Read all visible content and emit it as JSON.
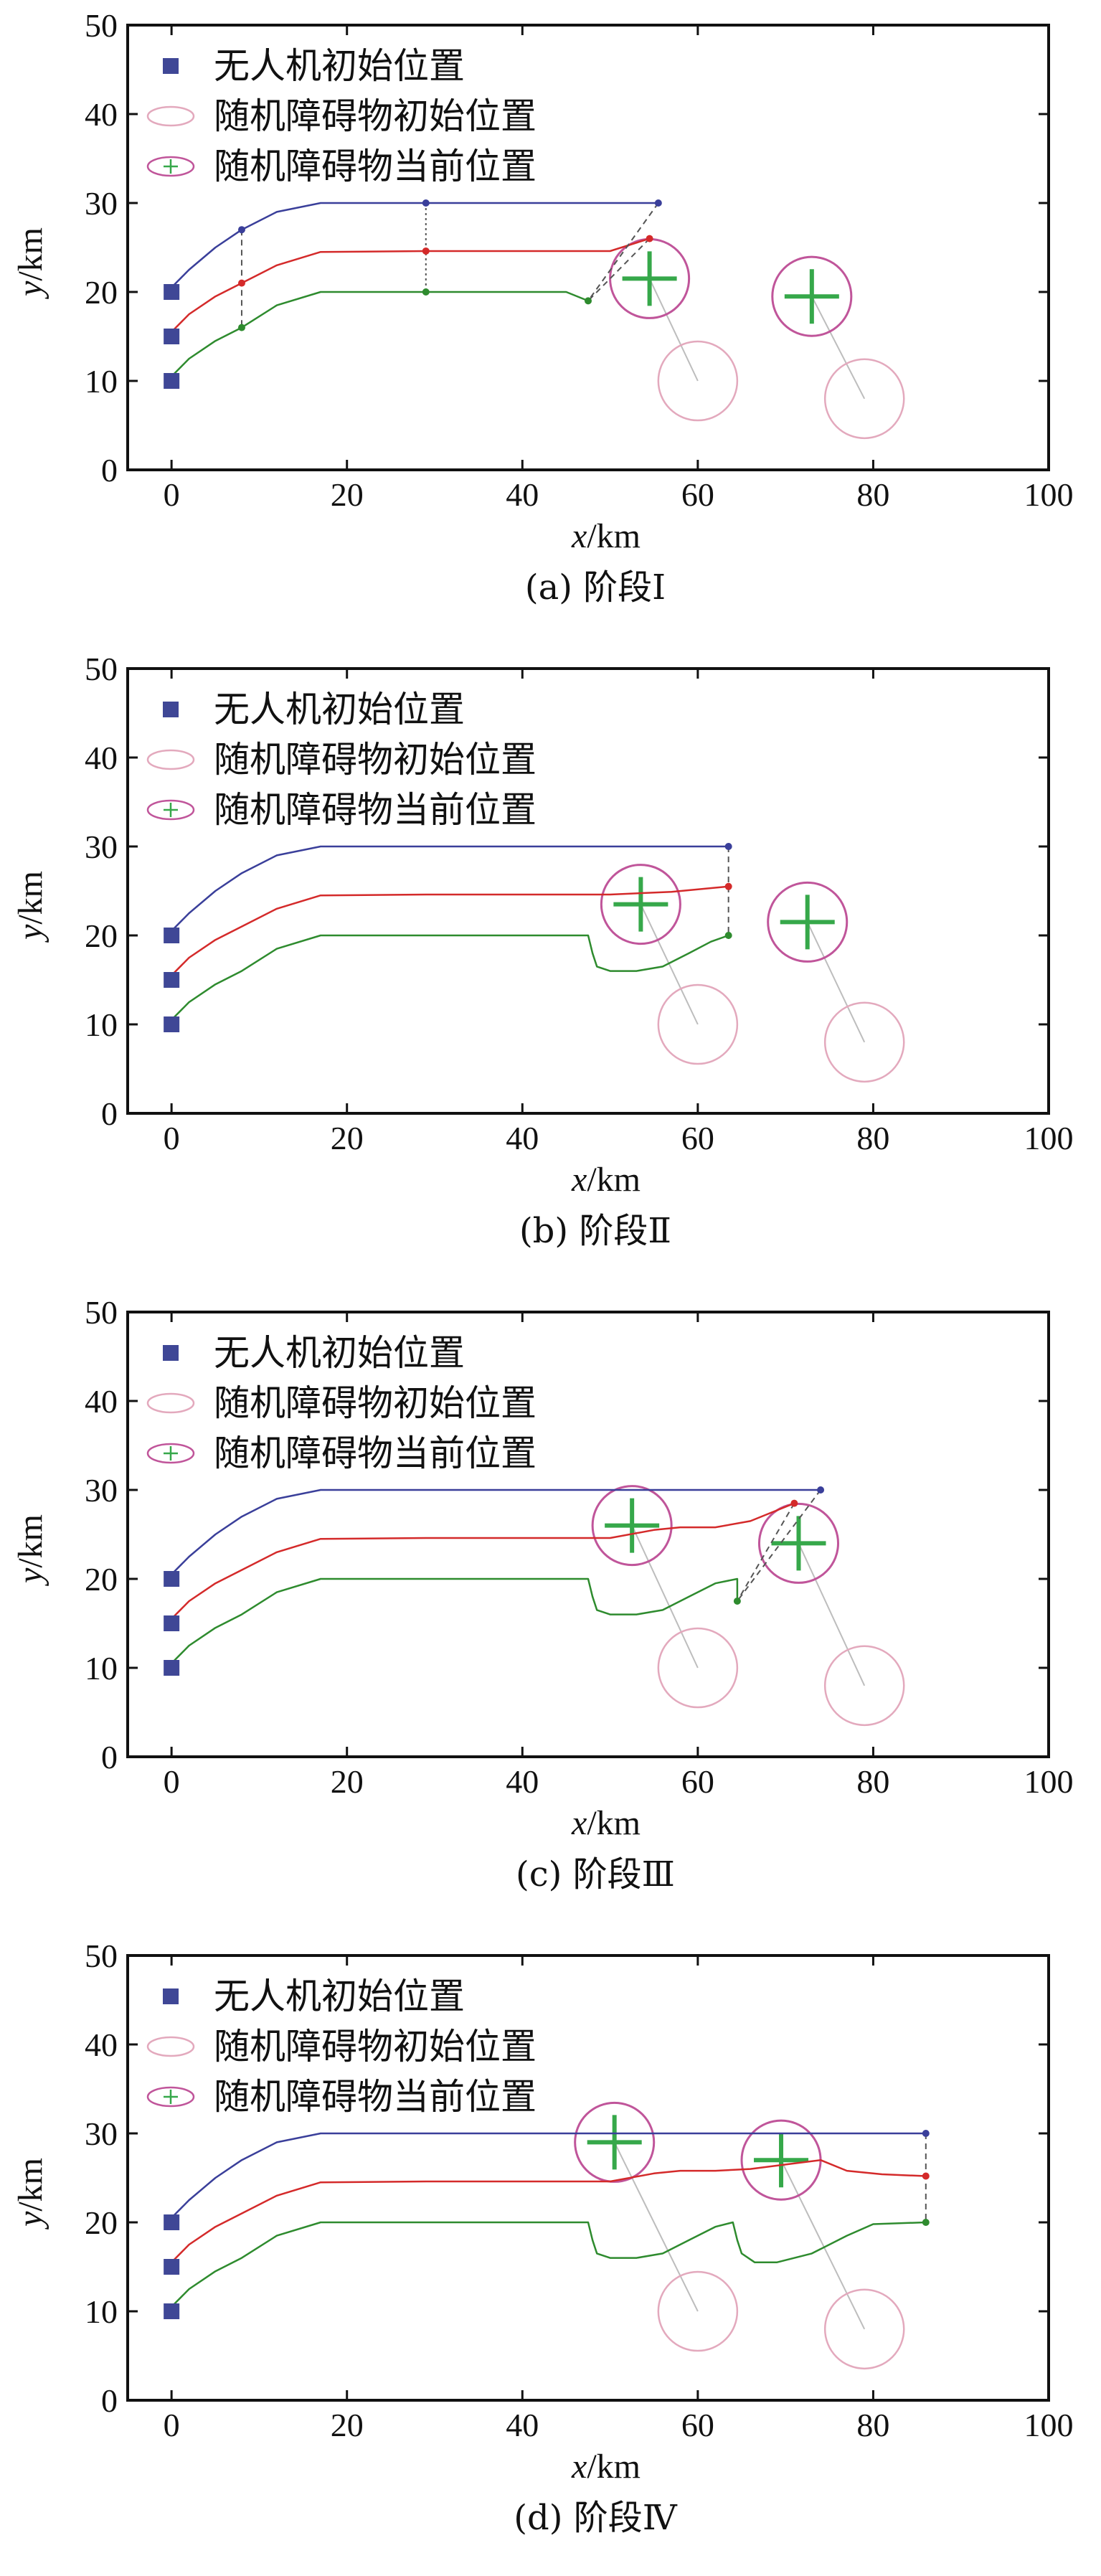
{
  "legend": {
    "uav_start": "无人机初始位置",
    "obstacle_start": "随机障碍物初始位置",
    "obstacle_current": "随机障碍物当前位置"
  },
  "colors": {
    "blue": "#3a3f9a",
    "red": "#d42a2a",
    "green": "#2e8b2e",
    "marker": "#3f4796",
    "circle": "#c0559a",
    "circle_light": "#e3a9bd",
    "cross": "#36a84a",
    "guide": "#555555",
    "obstacle_path": "#bdbdbd"
  },
  "chart_data": [
    {
      "type": "line",
      "caption": "(a) 阶段Ⅰ",
      "xlabel_var": "x",
      "xlabel_unit": "/km",
      "ylabel_var": "y",
      "ylabel_unit": "/km",
      "xlim": [
        -5,
        100
      ],
      "ylim": [
        0,
        50
      ],
      "xticks": [
        0,
        20,
        40,
        60,
        80,
        100
      ],
      "yticks": [
        0,
        10,
        20,
        30,
        40,
        50
      ],
      "uav_starts": [
        [
          0,
          20
        ],
        [
          0,
          15
        ],
        [
          0,
          10
        ]
      ],
      "series": [
        {
          "color": "blue",
          "points": [
            [
              0,
              20.5
            ],
            [
              2,
              22.5
            ],
            [
              5,
              25
            ],
            [
              8,
              27
            ],
            [
              12,
              29
            ],
            [
              17,
              30
            ],
            [
              29,
              30
            ],
            [
              45,
              30
            ],
            [
              55.5,
              30
            ]
          ]
        },
        {
          "color": "red",
          "points": [
            [
              0,
              15.5
            ],
            [
              2,
              17.5
            ],
            [
              5,
              19.5
            ],
            [
              8,
              21
            ],
            [
              12,
              23
            ],
            [
              17,
              24.5
            ],
            [
              29,
              24.6
            ],
            [
              45,
              24.6
            ],
            [
              50,
              24.6
            ],
            [
              54.5,
              26
            ]
          ]
        },
        {
          "color": "green",
          "points": [
            [
              0,
              10.5
            ],
            [
              2,
              12.5
            ],
            [
              5,
              14.5
            ],
            [
              8,
              16
            ],
            [
              12,
              18.5
            ],
            [
              17,
              20
            ],
            [
              29,
              20
            ],
            [
              45,
              20
            ],
            [
              47.5,
              19
            ]
          ]
        }
      ],
      "waypoints": [
        {
          "color": "blue",
          "points": [
            [
              8,
              27
            ],
            [
              29,
              30
            ],
            [
              55.5,
              30
            ]
          ]
        },
        {
          "color": "red",
          "points": [
            [
              8,
              21
            ],
            [
              29,
              24.6
            ],
            [
              54.5,
              26
            ]
          ]
        },
        {
          "color": "green",
          "points": [
            [
              8,
              16
            ],
            [
              29,
              20
            ],
            [
              47.5,
              19
            ]
          ]
        }
      ],
      "guides": [
        {
          "style": "dashed",
          "points": [
            [
              8,
              27
            ],
            [
              8,
              16
            ]
          ]
        },
        {
          "style": "dotted",
          "points": [
            [
              29,
              30
            ],
            [
              29,
              20
            ]
          ]
        },
        {
          "style": "dashed",
          "points": [
            [
              55.5,
              30
            ],
            [
              47.5,
              19
            ]
          ]
        },
        {
          "style": "dashed",
          "points": [
            [
              54.5,
              26
            ],
            [
              47.5,
              19
            ]
          ]
        }
      ],
      "obstacles": [
        {
          "start": [
            60,
            10
          ],
          "current": [
            54.5,
            21.5
          ]
        },
        {
          "start": [
            79,
            8
          ],
          "current": [
            73,
            19.5
          ]
        }
      ],
      "obstacle_radius": 4.5
    },
    {
      "type": "line",
      "caption": "(b) 阶段Ⅱ",
      "xlabel_var": "x",
      "xlabel_unit": "/km",
      "ylabel_var": "y",
      "ylabel_unit": "/km",
      "xlim": [
        -5,
        100
      ],
      "ylim": [
        0,
        50
      ],
      "xticks": [
        0,
        20,
        40,
        60,
        80,
        100
      ],
      "yticks": [
        0,
        10,
        20,
        30,
        40,
        50
      ],
      "uav_starts": [
        [
          0,
          20
        ],
        [
          0,
          15
        ],
        [
          0,
          10
        ]
      ],
      "series": [
        {
          "color": "blue",
          "points": [
            [
              0,
              20.5
            ],
            [
              2,
              22.5
            ],
            [
              5,
              25
            ],
            [
              8,
              27
            ],
            [
              12,
              29
            ],
            [
              17,
              30
            ],
            [
              29,
              30
            ],
            [
              45,
              30
            ],
            [
              63.5,
              30
            ]
          ]
        },
        {
          "color": "red",
          "points": [
            [
              0,
              15.5
            ],
            [
              2,
              17.5
            ],
            [
              5,
              19.5
            ],
            [
              8,
              21
            ],
            [
              12,
              23
            ],
            [
              17,
              24.5
            ],
            [
              29,
              24.6
            ],
            [
              45,
              24.6
            ],
            [
              50,
              24.6
            ],
            [
              57,
              24.9
            ],
            [
              63.5,
              25.5
            ]
          ]
        },
        {
          "color": "green",
          "points": [
            [
              0,
              10.5
            ],
            [
              2,
              12.5
            ],
            [
              5,
              14.5
            ],
            [
              8,
              16
            ],
            [
              12,
              18.5
            ],
            [
              17,
              20
            ],
            [
              29,
              20
            ],
            [
              40,
              20
            ],
            [
              47.5,
              20
            ],
            [
              48,
              18
            ],
            [
              48.5,
              16.5
            ],
            [
              50,
              16
            ],
            [
              53,
              16
            ],
            [
              56,
              16.5
            ],
            [
              59,
              18
            ],
            [
              61.5,
              19.3
            ],
            [
              63.5,
              20
            ]
          ]
        }
      ],
      "waypoints": [
        {
          "color": "blue",
          "points": [
            [
              63.5,
              30
            ]
          ]
        },
        {
          "color": "red",
          "points": [
            [
              63.5,
              25.5
            ]
          ]
        },
        {
          "color": "green",
          "points": [
            [
              63.5,
              20
            ]
          ]
        }
      ],
      "guides": [
        {
          "style": "dashed",
          "points": [
            [
              63.5,
              30
            ],
            [
              63.5,
              20
            ]
          ]
        }
      ],
      "obstacles": [
        {
          "start": [
            60,
            10
          ],
          "current": [
            53.5,
            23.5
          ]
        },
        {
          "start": [
            79,
            8
          ],
          "current": [
            72.5,
            21.5
          ]
        }
      ],
      "obstacle_radius": 4.5
    },
    {
      "type": "line",
      "caption": "(c) 阶段Ⅲ",
      "xlabel_var": "x",
      "xlabel_unit": "/km",
      "ylabel_var": "y",
      "ylabel_unit": "/km",
      "xlim": [
        -5,
        100
      ],
      "ylim": [
        0,
        50
      ],
      "xticks": [
        0,
        20,
        40,
        60,
        80,
        100
      ],
      "yticks": [
        0,
        10,
        20,
        30,
        40,
        50
      ],
      "uav_starts": [
        [
          0,
          20
        ],
        [
          0,
          15
        ],
        [
          0,
          10
        ]
      ],
      "series": [
        {
          "color": "blue",
          "points": [
            [
              0,
              20.5
            ],
            [
              2,
              22.5
            ],
            [
              5,
              25
            ],
            [
              8,
              27
            ],
            [
              12,
              29
            ],
            [
              17,
              30
            ],
            [
              29,
              30
            ],
            [
              45,
              30
            ],
            [
              60,
              30
            ],
            [
              74,
              30
            ]
          ]
        },
        {
          "color": "red",
          "points": [
            [
              0,
              15.5
            ],
            [
              2,
              17.5
            ],
            [
              5,
              19.5
            ],
            [
              8,
              21
            ],
            [
              12,
              23
            ],
            [
              17,
              24.5
            ],
            [
              29,
              24.6
            ],
            [
              45,
              24.6
            ],
            [
              50,
              24.6
            ],
            [
              55,
              25.5
            ],
            [
              58,
              25.8
            ],
            [
              62,
              25.8
            ],
            [
              66,
              26.5
            ],
            [
              71,
              28.5
            ]
          ]
        },
        {
          "color": "green",
          "points": [
            [
              0,
              10.5
            ],
            [
              2,
              12.5
            ],
            [
              5,
              14.5
            ],
            [
              8,
              16
            ],
            [
              12,
              18.5
            ],
            [
              17,
              20
            ],
            [
              29,
              20
            ],
            [
              40,
              20
            ],
            [
              47.5,
              20
            ],
            [
              48,
              18
            ],
            [
              48.5,
              16.5
            ],
            [
              50,
              16
            ],
            [
              53,
              16
            ],
            [
              56,
              16.5
            ],
            [
              59,
              18
            ],
            [
              62,
              19.5
            ],
            [
              64.5,
              20
            ],
            [
              64.5,
              17.5
            ]
          ]
        }
      ],
      "waypoints": [
        {
          "color": "blue",
          "points": [
            [
              74,
              30
            ]
          ]
        },
        {
          "color": "red",
          "points": [
            [
              71,
              28.5
            ]
          ]
        },
        {
          "color": "green",
          "points": [
            [
              64.5,
              17.5
            ]
          ]
        }
      ],
      "guides": [
        {
          "style": "dashed",
          "points": [
            [
              74,
              30
            ],
            [
              64.5,
              17.5
            ]
          ]
        },
        {
          "style": "dashed",
          "points": [
            [
              71,
              28.5
            ],
            [
              64.5,
              17.5
            ]
          ]
        }
      ],
      "obstacles": [
        {
          "start": [
            60,
            10
          ],
          "current": [
            52.5,
            26
          ]
        },
        {
          "start": [
            79,
            8
          ],
          "current": [
            71.5,
            24
          ]
        }
      ],
      "obstacle_radius": 4.5
    },
    {
      "type": "line",
      "caption": "(d) 阶段Ⅳ",
      "xlabel_var": "x",
      "xlabel_unit": "/km",
      "ylabel_var": "y",
      "ylabel_unit": "/km",
      "xlim": [
        -5,
        100
      ],
      "ylim": [
        0,
        50
      ],
      "xticks": [
        0,
        20,
        40,
        60,
        80,
        100
      ],
      "yticks": [
        0,
        10,
        20,
        30,
        40,
        50
      ],
      "uav_starts": [
        [
          0,
          20
        ],
        [
          0,
          15
        ],
        [
          0,
          10
        ]
      ],
      "series": [
        {
          "color": "blue",
          "points": [
            [
              0,
              20.5
            ],
            [
              2,
              22.5
            ],
            [
              5,
              25
            ],
            [
              8,
              27
            ],
            [
              12,
              29
            ],
            [
              17,
              30
            ],
            [
              29,
              30
            ],
            [
              45,
              30
            ],
            [
              60,
              30
            ],
            [
              75,
              30
            ],
            [
              86,
              30
            ]
          ]
        },
        {
          "color": "red",
          "points": [
            [
              0,
              15.5
            ],
            [
              2,
              17.5
            ],
            [
              5,
              19.5
            ],
            [
              8,
              21
            ],
            [
              12,
              23
            ],
            [
              17,
              24.5
            ],
            [
              29,
              24.6
            ],
            [
              45,
              24.6
            ],
            [
              50,
              24.6
            ],
            [
              55,
              25.5
            ],
            [
              58,
              25.8
            ],
            [
              62,
              25.8
            ],
            [
              66,
              26
            ],
            [
              70,
              26.5
            ],
            [
              74,
              27
            ],
            [
              77,
              25.8
            ],
            [
              81,
              25.4
            ],
            [
              86,
              25.2
            ]
          ]
        },
        {
          "color": "green",
          "points": [
            [
              0,
              10.5
            ],
            [
              2,
              12.5
            ],
            [
              5,
              14.5
            ],
            [
              8,
              16
            ],
            [
              12,
              18.5
            ],
            [
              17,
              20
            ],
            [
              29,
              20
            ],
            [
              40,
              20
            ],
            [
              47.5,
              20
            ],
            [
              48,
              18
            ],
            [
              48.5,
              16.5
            ],
            [
              50,
              16
            ],
            [
              53,
              16
            ],
            [
              56,
              16.5
            ],
            [
              59,
              18
            ],
            [
              62,
              19.5
            ],
            [
              64,
              20
            ],
            [
              64.5,
              18
            ],
            [
              65,
              16.5
            ],
            [
              66.5,
              15.5
            ],
            [
              69,
              15.5
            ],
            [
              73,
              16.5
            ],
            [
              77,
              18.5
            ],
            [
              80,
              19.8
            ],
            [
              86,
              20
            ]
          ]
        }
      ],
      "waypoints": [
        {
          "color": "blue",
          "points": [
            [
              86,
              30
            ]
          ]
        },
        {
          "color": "red",
          "points": [
            [
              86,
              25.2
            ]
          ]
        },
        {
          "color": "green",
          "points": [
            [
              86,
              20
            ]
          ]
        }
      ],
      "guides": [
        {
          "style": "dashed",
          "points": [
            [
              86,
              30
            ],
            [
              86,
              20
            ]
          ]
        }
      ],
      "obstacles": [
        {
          "start": [
            60,
            10
          ],
          "current": [
            50.5,
            29
          ]
        },
        {
          "start": [
            79,
            8
          ],
          "current": [
            69.5,
            27
          ]
        }
      ],
      "obstacle_radius": 4.5
    }
  ]
}
